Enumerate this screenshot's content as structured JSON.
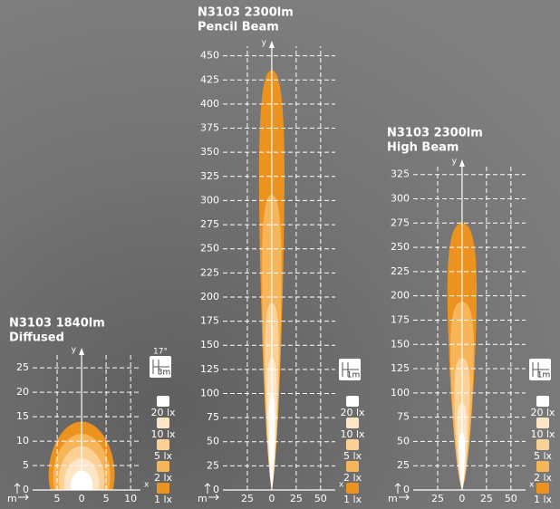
{
  "chart_data": [
    {
      "type": "isolux-dome",
      "title": "N3103 1840lm",
      "subtitle": "Diffused",
      "xlabel": "x",
      "ylabel": "y",
      "unit_label": "m",
      "icon_labels": [
        "17°",
        "3m"
      ],
      "xlim": [
        -10,
        12
      ],
      "ylim": [
        0,
        28
      ],
      "xticks": [
        {
          "value": -5,
          "label": "5"
        },
        0,
        5,
        10
      ],
      "yticks": [
        0,
        5,
        10,
        15,
        20,
        25
      ],
      "grid": true,
      "series": [
        {
          "name": "20 lx",
          "color": "#ffffff",
          "reach": 4,
          "half_width": 2.5
        },
        {
          "name": "10 lx",
          "color": "#fde6c6",
          "reach": 6.5,
          "half_width": 4
        },
        {
          "name": "5 lx",
          "color": "#fbd196",
          "reach": 9,
          "half_width": 5.2
        },
        {
          "name": "2 lx",
          "color": "#f7b55a",
          "reach": 11.5,
          "half_width": 6.5
        },
        {
          "name": "1 lx",
          "color": "#ec921f",
          "reach": 14,
          "half_width": 7.5
        }
      ]
    },
    {
      "type": "isolux-beam",
      "title": "N3103 2300lm",
      "subtitle": "Pencil Beam",
      "xlabel": "x",
      "ylabel": "y",
      "unit_label": "m",
      "icon_labels": [
        "1m"
      ],
      "xlim": [
        -50,
        65
      ],
      "ylim": [
        0,
        460
      ],
      "xticks": [
        {
          "value": -25,
          "label": "25"
        },
        0,
        25,
        50
      ],
      "yticks": [
        0,
        25,
        50,
        75,
        100,
        125,
        150,
        175,
        200,
        225,
        250,
        275,
        300,
        325,
        350,
        375,
        400,
        425,
        450
      ],
      "grid": true,
      "series": [
        {
          "name": "20 lx",
          "color": "#ffffff",
          "reach": 100,
          "half_width": 3
        },
        {
          "name": "10 lx",
          "color": "#fde6c6",
          "reach": 137,
          "half_width": 5
        },
        {
          "name": "5 lx",
          "color": "#fbd196",
          "reach": 194,
          "half_width": 7
        },
        {
          "name": "2 lx",
          "color": "#f7b55a",
          "reach": 306,
          "half_width": 10
        },
        {
          "name": "1 lx",
          "color": "#ec921f",
          "reach": 435,
          "half_width": 13
        }
      ]
    },
    {
      "type": "isolux-beam",
      "title": "N3103 2300lm",
      "subtitle": "High Beam",
      "xlabel": "x",
      "ylabel": "y",
      "unit_label": "m",
      "icon_labels": [
        "1m"
      ],
      "xlim": [
        -50,
        65
      ],
      "ylim": [
        0,
        335
      ],
      "xticks": [
        {
          "value": -25,
          "label": "25"
        },
        0,
        25,
        50
      ],
      "yticks": [
        0,
        25,
        50,
        75,
        100,
        125,
        150,
        175,
        200,
        225,
        250,
        275,
        300,
        325
      ],
      "grid": true,
      "series": [
        {
          "name": "20 lx",
          "color": "#ffffff",
          "reach": 59,
          "half_width": 3
        },
        {
          "name": "10 lx",
          "color": "#fde6c6",
          "reach": 90,
          "half_width": 5
        },
        {
          "name": "5 lx",
          "color": "#fbd196",
          "reach": 136,
          "half_width": 8
        },
        {
          "name": "2 lx",
          "color": "#f7b55a",
          "reach": 194,
          "half_width": 12
        },
        {
          "name": "1 lx",
          "color": "#ec921f",
          "reach": 275,
          "half_width": 15
        }
      ]
    }
  ]
}
